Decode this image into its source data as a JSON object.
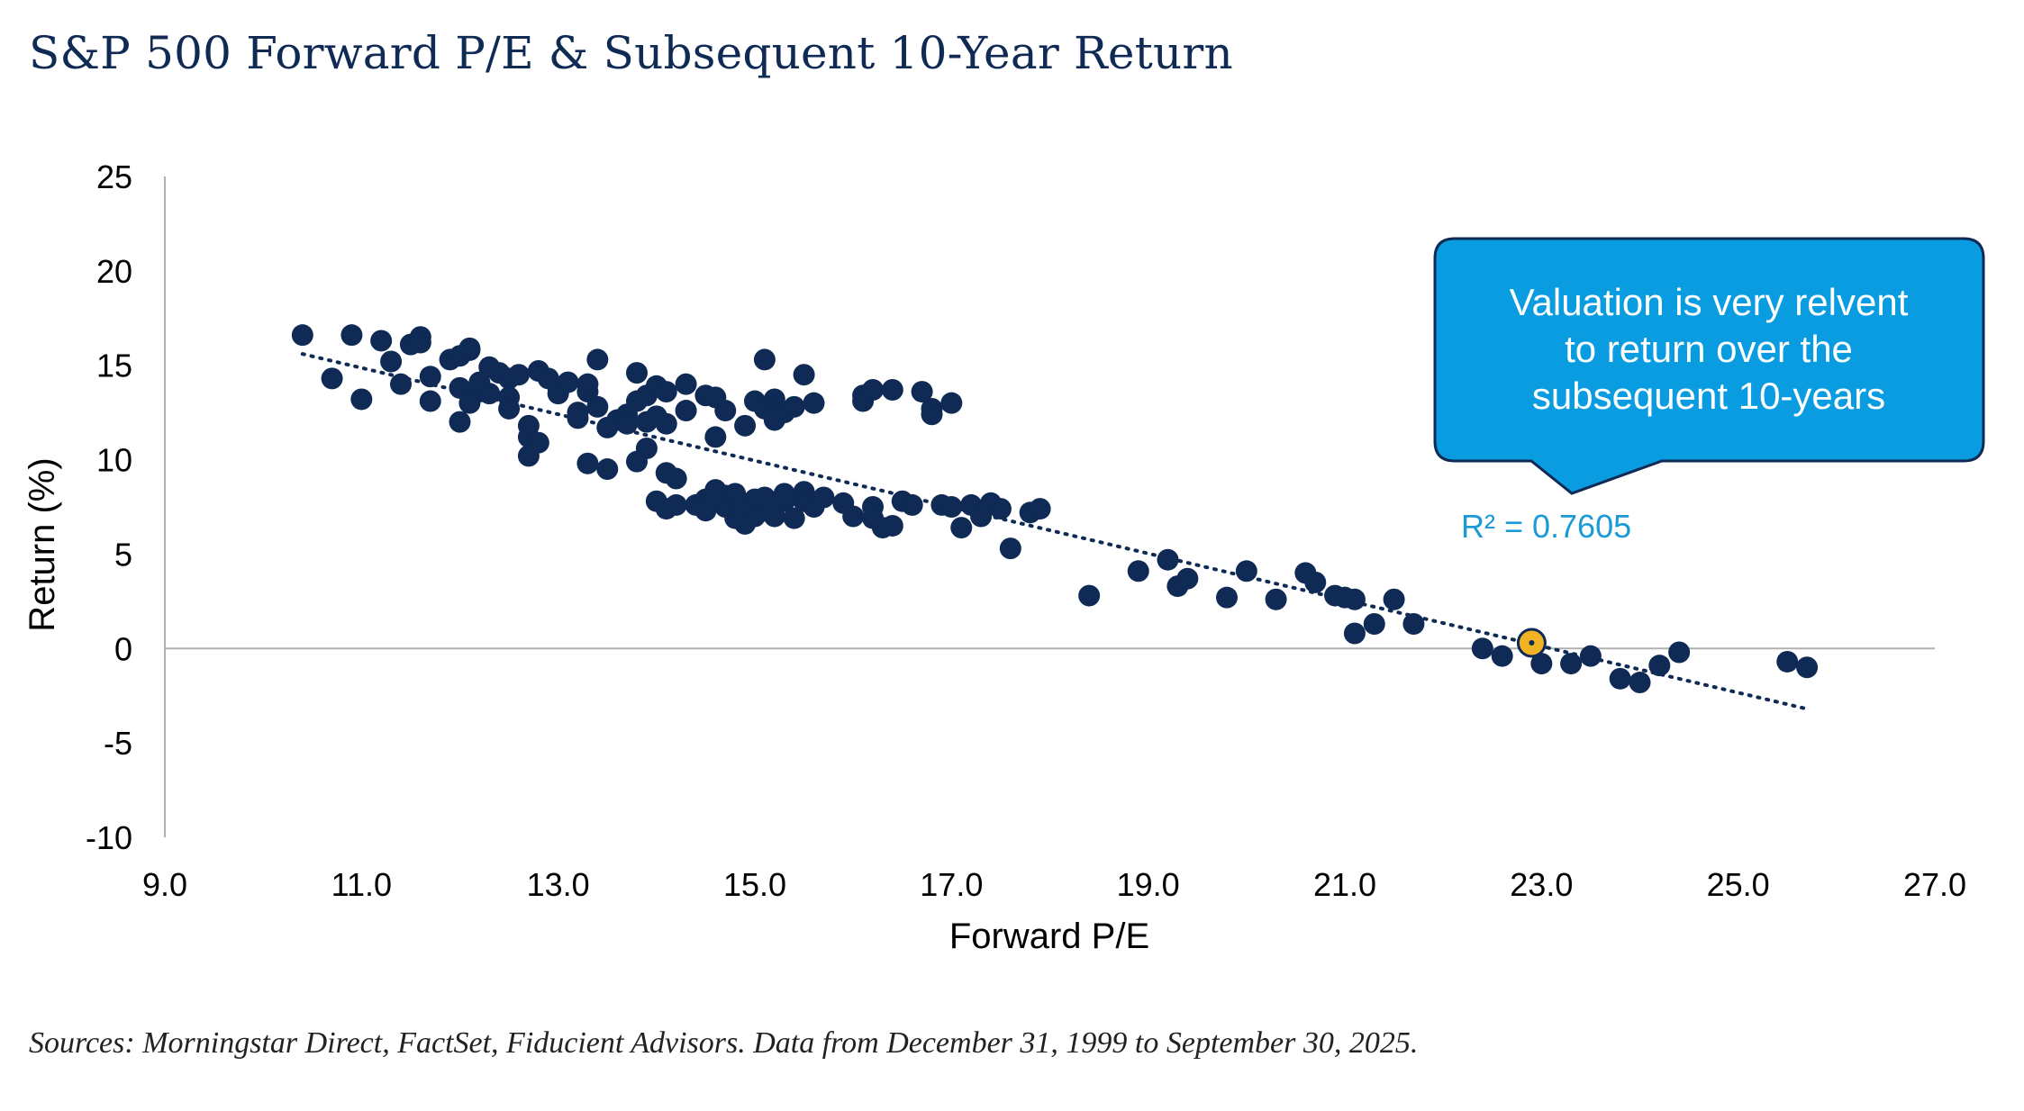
{
  "title": "S&P 500 Forward P/E & Subsequent 10-Year Return",
  "source": "Sources: Morningstar Direct, FactSet, Fiducient Advisors. Data from December 31, 1999 to September 30, 2025.",
  "callout": {
    "lines": [
      "Valuation is very relvent",
      "to return over the",
      "subsequent 10-years"
    ]
  },
  "colors": {
    "point": "#0f2a54",
    "highlight": "#f0b323",
    "callout": "#0a9ce0",
    "callout_border": "#0f2a54",
    "r2": "#1a9ad6",
    "axis": "#b0b0b0"
  },
  "chart_data": {
    "type": "scatter",
    "title": "S&P 500 Forward P/E & Subsequent 10-Year Return",
    "xlabel": "Forward P/E",
    "ylabel": "Return (%)",
    "xlim": [
      9.0,
      27.0
    ],
    "ylim": [
      -10,
      25
    ],
    "x_ticks": [
      "9.0",
      "11.0",
      "13.0",
      "15.0",
      "17.0",
      "19.0",
      "21.0",
      "23.0",
      "25.0",
      "27.0"
    ],
    "y_ticks": [
      "25",
      "20",
      "15",
      "10",
      "5",
      "0",
      "-5",
      "-10"
    ],
    "grid": false,
    "r_squared_label": "R² = 0.7605",
    "trendline": {
      "style": "dotted",
      "x": [
        10.4,
        25.7
      ],
      "y": [
        15.6,
        -3.2
      ]
    },
    "highlight_point": {
      "x": 22.9,
      "y": 0.3
    },
    "points": [
      [
        10.4,
        16.6
      ],
      [
        10.9,
        16.6
      ],
      [
        11.2,
        16.3
      ],
      [
        11.5,
        16.1
      ],
      [
        11.6,
        16.5
      ],
      [
        11.6,
        16.2
      ],
      [
        11.9,
        15.3
      ],
      [
        12.0,
        15.5
      ],
      [
        12.1,
        15.8
      ],
      [
        12.1,
        15.9
      ],
      [
        10.7,
        14.3
      ],
      [
        11.0,
        13.2
      ],
      [
        11.3,
        15.2
      ],
      [
        11.4,
        14.0
      ],
      [
        11.7,
        13.1
      ],
      [
        11.7,
        14.4
      ],
      [
        12.0,
        12.0
      ],
      [
        12.0,
        13.8
      ],
      [
        12.1,
        13.0
      ],
      [
        12.2,
        13.6
      ],
      [
        12.2,
        14.1
      ],
      [
        12.3,
        13.5
      ],
      [
        12.3,
        14.9
      ],
      [
        12.4,
        14.6
      ],
      [
        12.5,
        14.3
      ],
      [
        12.5,
        13.3
      ],
      [
        12.5,
        12.7
      ],
      [
        12.6,
        14.5
      ],
      [
        12.7,
        10.2
      ],
      [
        12.7,
        11.2
      ],
      [
        12.8,
        10.9
      ],
      [
        12.7,
        11.8
      ],
      [
        12.8,
        14.7
      ],
      [
        12.9,
        14.3
      ],
      [
        13.0,
        13.8
      ],
      [
        13.0,
        13.5
      ],
      [
        13.1,
        14.1
      ],
      [
        13.2,
        12.5
      ],
      [
        13.2,
        12.2
      ],
      [
        13.3,
        13.6
      ],
      [
        13.3,
        14.0
      ],
      [
        13.4,
        12.8
      ],
      [
        13.3,
        9.8
      ],
      [
        13.5,
        9.5
      ],
      [
        13.4,
        15.3
      ],
      [
        13.5,
        11.7
      ],
      [
        13.6,
        12.1
      ],
      [
        13.7,
        12.4
      ],
      [
        13.7,
        11.9
      ],
      [
        13.8,
        13.1
      ],
      [
        13.8,
        14.6
      ],
      [
        13.9,
        12.0
      ],
      [
        13.9,
        10.6
      ],
      [
        13.8,
        9.9
      ],
      [
        13.9,
        13.4
      ],
      [
        14.0,
        13.9
      ],
      [
        14.0,
        12.3
      ],
      [
        14.1,
        13.6
      ],
      [
        14.1,
        11.9
      ],
      [
        14.1,
        9.3
      ],
      [
        14.2,
        9.0
      ],
      [
        14.3,
        14.0
      ],
      [
        14.3,
        12.6
      ],
      [
        14.0,
        7.8
      ],
      [
        14.1,
        7.4
      ],
      [
        14.2,
        7.6
      ],
      [
        14.4,
        7.6
      ],
      [
        14.5,
        7.9
      ],
      [
        14.5,
        7.3
      ],
      [
        14.6,
        7.9
      ],
      [
        14.6,
        8.4
      ],
      [
        14.7,
        8.1
      ],
      [
        14.7,
        7.5
      ],
      [
        14.8,
        6.9
      ],
      [
        14.8,
        7.7
      ],
      [
        14.8,
        8.2
      ],
      [
        14.9,
        6.6
      ],
      [
        14.9,
        7.4
      ],
      [
        15.0,
        7.0
      ],
      [
        15.0,
        7.9
      ],
      [
        15.1,
        7.3
      ],
      [
        15.1,
        8.0
      ],
      [
        15.2,
        7.6
      ],
      [
        15.2,
        7.0
      ],
      [
        15.3,
        7.8
      ],
      [
        15.3,
        8.2
      ],
      [
        15.4,
        6.9
      ],
      [
        15.5,
        8.3
      ],
      [
        15.5,
        7.8
      ],
      [
        15.6,
        7.5
      ],
      [
        14.5,
        13.4
      ],
      [
        14.6,
        13.3
      ],
      [
        14.6,
        11.2
      ],
      [
        14.7,
        12.6
      ],
      [
        14.9,
        11.8
      ],
      [
        15.0,
        13.1
      ],
      [
        15.1,
        12.7
      ],
      [
        15.1,
        15.3
      ],
      [
        15.2,
        13.2
      ],
      [
        15.2,
        12.8
      ],
      [
        15.2,
        12.1
      ],
      [
        15.3,
        12.5
      ],
      [
        15.4,
        12.8
      ],
      [
        15.5,
        14.5
      ],
      [
        15.6,
        13.0
      ],
      [
        15.7,
        8.0
      ],
      [
        15.9,
        7.7
      ],
      [
        16.0,
        7.0
      ],
      [
        16.1,
        13.4
      ],
      [
        16.1,
        13.1
      ],
      [
        16.2,
        13.7
      ],
      [
        16.2,
        7.5
      ],
      [
        16.2,
        6.9
      ],
      [
        16.3,
        6.4
      ],
      [
        16.4,
        13.7
      ],
      [
        16.4,
        6.5
      ],
      [
        16.5,
        7.8
      ],
      [
        16.6,
        7.6
      ],
      [
        16.7,
        13.6
      ],
      [
        16.8,
        12.7
      ],
      [
        16.8,
        12.4
      ],
      [
        17.0,
        13.0
      ],
      [
        16.9,
        7.6
      ],
      [
        17.0,
        7.5
      ],
      [
        17.1,
        6.4
      ],
      [
        17.2,
        7.6
      ],
      [
        17.3,
        7.0
      ],
      [
        17.4,
        7.7
      ],
      [
        17.5,
        7.4
      ],
      [
        17.6,
        5.3
      ],
      [
        17.8,
        7.2
      ],
      [
        17.9,
        7.4
      ],
      [
        18.4,
        2.8
      ],
      [
        18.9,
        4.1
      ],
      [
        19.2,
        4.7
      ],
      [
        19.3,
        3.3
      ],
      [
        19.4,
        3.7
      ],
      [
        19.8,
        2.7
      ],
      [
        20.0,
        4.1
      ],
      [
        20.3,
        2.6
      ],
      [
        20.6,
        4.0
      ],
      [
        20.7,
        3.5
      ],
      [
        20.9,
        2.8
      ],
      [
        21.0,
        2.7
      ],
      [
        21.1,
        2.6
      ],
      [
        21.1,
        0.8
      ],
      [
        21.3,
        1.3
      ],
      [
        21.5,
        2.6
      ],
      [
        21.7,
        1.3
      ],
      [
        22.4,
        0.0
      ],
      [
        22.6,
        -0.4
      ],
      [
        23.0,
        -0.8
      ],
      [
        23.3,
        -0.8
      ],
      [
        23.5,
        -0.4
      ],
      [
        23.8,
        -1.6
      ],
      [
        24.0,
        -1.8
      ],
      [
        24.2,
        -0.9
      ],
      [
        24.4,
        -0.2
      ],
      [
        25.5,
        -0.7
      ],
      [
        25.7,
        -1.0
      ]
    ]
  }
}
